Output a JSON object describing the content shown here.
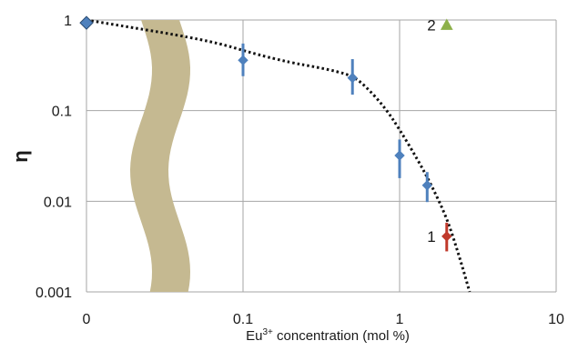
{
  "chart_data": {
    "type": "scatter",
    "title": "",
    "xlabel": {
      "prefix": "Eu",
      "superscript": "3+",
      "suffix": " concentration (mol %)"
    },
    "ylabel": "η",
    "x_scale": "broken-log",
    "y_scale": "log",
    "x_ticks": [
      "0",
      "0.1",
      "1",
      "10"
    ],
    "y_ticks": [
      "1",
      "0.1",
      "0.01",
      "0.001"
    ],
    "ylim": [
      0.001,
      1
    ],
    "grid": true,
    "legend": "none",
    "series": [
      {
        "marker": "diamond",
        "color": "#4f81bd",
        "points": [
          {
            "x": 0.1,
            "y": 0.36,
            "y_err_low": 0.24,
            "y_err_high": 0.55
          },
          {
            "x": 0.5,
            "y": 0.23,
            "y_err_low": 0.15,
            "y_err_high": 0.37
          },
          {
            "x": 1.0,
            "y": 0.032,
            "y_err_low": 0.018,
            "y_err_high": 0.048
          },
          {
            "x": 1.5,
            "y": 0.015,
            "y_err_low": 0.0098,
            "y_err_high": 0.021
          }
        ]
      },
      {
        "marker": "diamond",
        "color": "#4f81bd",
        "points": [
          {
            "x": 0,
            "y": 0.93
          }
        ]
      },
      {
        "marker": "diamond",
        "color": "#c0392b",
        "label": "1",
        "points": [
          {
            "x": 2.0,
            "y": 0.0041,
            "y_err_low": 0.0028,
            "y_err_high": 0.0058
          }
        ]
      },
      {
        "marker": "triangle",
        "color": "#8db04a",
        "label": "2",
        "points": [
          {
            "x": 2.0,
            "y": 0.88
          }
        ]
      }
    ],
    "fit_curve": {
      "style": "dotted",
      "color": "#111111",
      "points": [
        {
          "x": 0,
          "y": 1.0
        },
        {
          "x": 0.06,
          "y": 0.6
        },
        {
          "x": 0.12,
          "y": 0.42
        },
        {
          "x": 0.2,
          "y": 0.34
        },
        {
          "x": 0.3,
          "y": 0.3
        },
        {
          "x": 0.4,
          "y": 0.27
        },
        {
          "x": 0.5,
          "y": 0.24
        },
        {
          "x": 0.6,
          "y": 0.19
        },
        {
          "x": 0.8,
          "y": 0.11
        },
        {
          "x": 1.0,
          "y": 0.062
        },
        {
          "x": 1.3,
          "y": 0.029
        },
        {
          "x": 1.6,
          "y": 0.015
        },
        {
          "x": 2.0,
          "y": 0.0066
        },
        {
          "x": 2.4,
          "y": 0.0025
        },
        {
          "x": 2.8,
          "y": 0.001
        }
      ]
    },
    "axis_break": {
      "color": "#c5b991"
    }
  }
}
